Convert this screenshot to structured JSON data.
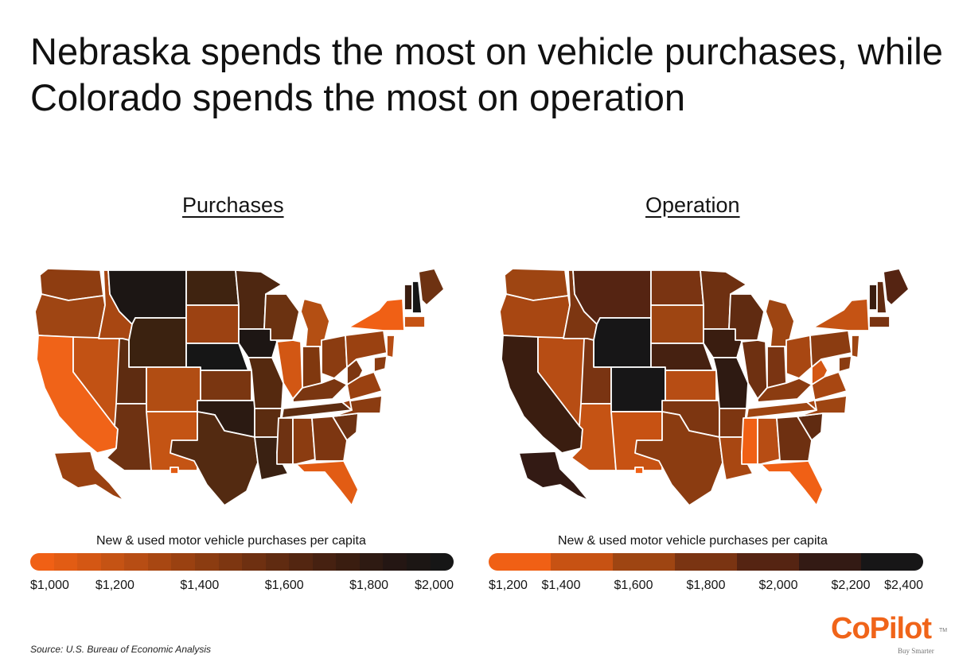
{
  "headline": "Nebraska spends the most on vehicle purchases, while Colorado spends the most on operation",
  "source": "Source: U.S. Bureau of Economic Analysis",
  "logo": {
    "wordmark": "CoPilot",
    "trademark": "TM",
    "tagline": "Buy Smarter"
  },
  "map_purchases": {
    "title": "Purchases",
    "legend_title": "New & used motor vehicle purchases per capita",
    "legend_ticks": [
      "$1,000",
      "$1,200",
      "$1,400",
      "$1,600",
      "$1,800",
      "$2,000"
    ],
    "scale_min": 1000,
    "scale_max": 2000,
    "gradient_colors": [
      "#f06015",
      "#e25c14",
      "#d45714",
      "#c55314",
      "#b74d14",
      "#a84712",
      "#9a4111",
      "#8b3c11",
      "#7d3611",
      "#6e3011",
      "#602b11",
      "#532611",
      "#462111",
      "#3a1d10",
      "#2e1a12",
      "#241613",
      "#1c1614",
      "#161616"
    ],
    "darkest_state": "Nebraska"
  },
  "map_operation": {
    "title": "Operation",
    "legend_title": "New & used motor vehicle purchases per capita",
    "legend_ticks": [
      "$1,200",
      "$1,400",
      "$1,600",
      "$1,800",
      "$2,000",
      "$2,200",
      "$2,400"
    ],
    "scale_min": 1200,
    "scale_max": 2400,
    "gradient_colors": [
      "#f06015",
      "#c75213",
      "#9e4512",
      "#7a3412",
      "#552412",
      "#331a14",
      "#171617"
    ],
    "darkest_state": "Colorado"
  },
  "states": {
    "WA": "#8e3d11",
    "OR": "#9f4513",
    "CA": "#f06318",
    "NV": "#c25214",
    "ID": "#a84712",
    "MT": "#1c1614",
    "WY": "#3b2210",
    "UT": "#5e2c11",
    "AZ": "#6e3212",
    "CO": "#b14d13",
    "NM": "#c45414",
    "ND": "#3f2310",
    "SD": "#9c4212",
    "NE": "#161616",
    "KS": "#7a3611",
    "OK": "#2b1a12",
    "TX": "#532a11",
    "MN": "#4e2711",
    "IA": "#1d1614",
    "MO": "#55290f",
    "AR": "#5b2c10",
    "LA": "#3a2112",
    "WI": "#6b3211",
    "IL": "#d25714",
    "MI": "#b44f13",
    "IN": "#80380f",
    "OH": "#8b3c11",
    "KY": "#7a3611",
    "TN": "#5e2d11",
    "MS": "#6e3212",
    "AL": "#8b3c11",
    "GA": "#7d3611",
    "FL": "#e25c14",
    "SC": "#6e3212",
    "NC": "#8b3c11",
    "VA": "#9a4111",
    "WV": "#7d3611",
    "PA": "#9a4111",
    "NY": "#f06015",
    "VT": "#3a1d10",
    "NH": "#161616",
    "ME": "#6e3212",
    "MA": "#c55314",
    "NJ": "#b74d14",
    "MD": "#8b3c11",
    "AK": "#9a4111",
    "HI": "#e25c14"
  },
  "states_operation": {
    "WA": "#9e4512",
    "OR": "#a84712",
    "CA": "#3a1d10",
    "NV": "#b74d14",
    "ID": "#7d3611",
    "MT": "#552412",
    "WY": "#171617",
    "UT": "#7a3412",
    "AZ": "#c55314",
    "CO": "#171617",
    "NM": "#c75213",
    "ND": "#7a3412",
    "SD": "#9e4512",
    "NE": "#462111",
    "KS": "#b74d14",
    "OK": "#7d3611",
    "TX": "#8b3c11",
    "MN": "#6e3011",
    "IA": "#3a1d10",
    "MO": "#2e1a12",
    "AR": "#7d3611",
    "LA": "#a84712",
    "WI": "#602b11",
    "IL": "#6e3011",
    "MI": "#9e4512",
    "IN": "#7a3412",
    "OH": "#a84712",
    "KY": "#8b3c11",
    "TN": "#9e4512",
    "MS": "#f06015",
    "AL": "#b74d14",
    "GA": "#6e3011",
    "FL": "#f06015",
    "SC": "#602b11",
    "NC": "#9e4512",
    "VA": "#a84712",
    "WV": "#d45714",
    "PA": "#8b3c11",
    "NY": "#c55314",
    "VT": "#3a1d10",
    "NH": "#602b11",
    "ME": "#552412",
    "MA": "#7a3412",
    "NJ": "#9e4512",
    "MD": "#8b3c11",
    "AK": "#331a14",
    "HI": "#f06015"
  }
}
